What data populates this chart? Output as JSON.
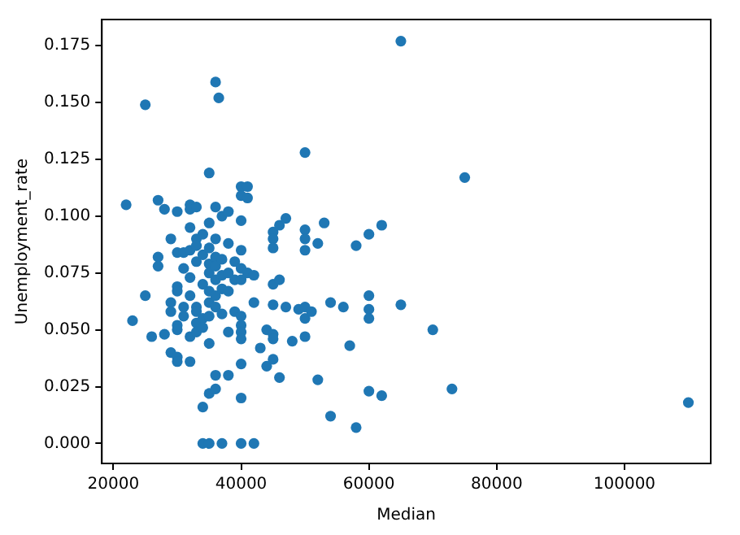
{
  "chart_data": {
    "type": "scatter",
    "xlabel": "Median",
    "ylabel": "Unemployment_rate",
    "marker": "circle",
    "grid": false,
    "xlim": [
      18200,
      113500
    ],
    "ylim": [
      -0.0088,
      0.1865
    ],
    "xticks": [
      20000,
      40000,
      60000,
      80000,
      100000
    ],
    "yticks": [
      {
        "value": 0,
        "label": "0.000"
      },
      {
        "value": 0.025,
        "label": "0.025"
      },
      {
        "value": 0.05,
        "label": "0.050"
      },
      {
        "value": 0.075,
        "label": "0.075"
      },
      {
        "value": 0.1,
        "label": "0.100"
      },
      {
        "value": 0.125,
        "label": "0.125"
      },
      {
        "value": 0.15,
        "label": "0.150"
      },
      {
        "value": 0.175,
        "label": "0.175"
      }
    ],
    "series": [
      {
        "color": "#1f77b4",
        "x": [
          65000,
          36000,
          25000,
          36500,
          50000,
          75000,
          110000,
          73000,
          70000,
          65000,
          62000,
          60000,
          58000,
          57000,
          58000,
          60000,
          62000,
          54000,
          52000,
          60000,
          60000,
          60000,
          56000,
          54000,
          53000,
          52000,
          50000,
          50000,
          50000,
          34000,
          35000,
          37000,
          40000,
          42000,
          22000,
          23000,
          25000,
          26000,
          27000,
          27000,
          27000,
          28000,
          28000,
          29000,
          29000,
          29000,
          29000,
          30000,
          30000,
          30000,
          30000,
          30000,
          30000,
          30000,
          30000,
          31000,
          31000,
          31000,
          31000,
          32000,
          32000,
          32000,
          32000,
          32000,
          32000,
          32000,
          32000,
          33000,
          33000,
          33000,
          33000,
          33000,
          33000,
          33000,
          33000,
          34000,
          34000,
          34000,
          34000,
          34000,
          34000,
          35000,
          35000,
          35000,
          35000,
          35000,
          35000,
          35000,
          35000,
          35000,
          35000,
          36000,
          36000,
          36000,
          36000,
          36000,
          36000,
          36000,
          36000,
          36000,
          37000,
          37000,
          37000,
          37000,
          37000,
          38000,
          38000,
          38000,
          38000,
          38000,
          38000,
          39000,
          39000,
          39000,
          40000,
          40000,
          40000,
          40000,
          40000,
          40000,
          40000,
          40000,
          40000,
          40000,
          40000,
          40000,
          41000,
          41000,
          41000,
          42000,
          42000,
          43000,
          44000,
          44000,
          45000,
          45000,
          45000,
          45000,
          45000,
          45000,
          45000,
          45000,
          46000,
          46000,
          46000,
          47000,
          47000,
          48000,
          49000,
          50000,
          50000,
          50000,
          51000
        ],
        "values": [
          0.177,
          0.159,
          0.149,
          0.152,
          0.128,
          0.117,
          0.018,
          0.024,
          0.05,
          0.061,
          0.096,
          0.092,
          0.087,
          0.043,
          0.007,
          0.023,
          0.021,
          0.012,
          0.028,
          0.065,
          0.059,
          0.055,
          0.06,
          0.062,
          0.097,
          0.088,
          0.094,
          0.09,
          0.085,
          0,
          0,
          0,
          0,
          0,
          0.105,
          0.054,
          0.065,
          0.047,
          0.107,
          0.082,
          0.078,
          0.103,
          0.048,
          0.09,
          0.062,
          0.058,
          0.04,
          0.102,
          0.084,
          0.069,
          0.067,
          0.052,
          0.05,
          0.038,
          0.036,
          0.084,
          0.077,
          0.06,
          0.056,
          0.105,
          0.103,
          0.095,
          0.085,
          0.073,
          0.065,
          0.047,
          0.036,
          0.104,
          0.09,
          0.087,
          0.08,
          0.06,
          0.058,
          0.053,
          0.049,
          0.092,
          0.083,
          0.07,
          0.055,
          0.051,
          0.016,
          0.119,
          0.097,
          0.086,
          0.079,
          0.075,
          0.067,
          0.062,
          0.056,
          0.044,
          0.022,
          0.104,
          0.09,
          0.082,
          0.078,
          0.072,
          0.065,
          0.06,
          0.03,
          0.024,
          0.1,
          0.081,
          0.074,
          0.068,
          0.057,
          0.102,
          0.088,
          0.075,
          0.067,
          0.049,
          0.03,
          0.08,
          0.072,
          0.058,
          0.113,
          0.109,
          0.098,
          0.085,
          0.077,
          0.072,
          0.056,
          0.052,
          0.049,
          0.046,
          0.035,
          0.02,
          0.113,
          0.108,
          0.075,
          0.074,
          0.062,
          0.042,
          0.034,
          0.05,
          0.093,
          0.09,
          0.086,
          0.07,
          0.061,
          0.048,
          0.046,
          0.037,
          0.096,
          0.072,
          0.029,
          0.099,
          0.06,
          0.045,
          0.059,
          0.06,
          0.055,
          0.047,
          0.058
        ]
      }
    ]
  }
}
